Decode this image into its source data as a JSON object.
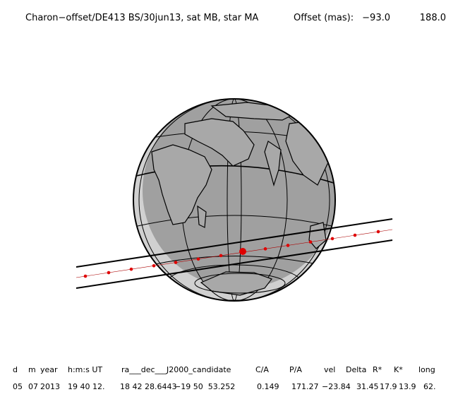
{
  "header": {
    "title": "Charon−offset/DE413 BS/30jun13, sat MB, star MA",
    "offset_label": "Offset (mas):",
    "offset_1": "−93.0",
    "offset_2": "188.0"
  },
  "table": {
    "columns": [
      "d",
      "m",
      "year",
      "h:m:s UT",
      "ra___dec___J2000_candidate",
      "C/A",
      "P/A",
      "vel",
      "Delta",
      "R*",
      "K*",
      "long"
    ],
    "row": [
      "05",
      "07",
      "2013",
      "19 40 12.",
      "18 42 28.6443",
      "−19 50  53.252",
      "0.149",
      "171.27",
      "−23.84",
      "31.45",
      "17.9",
      "13.9",
      "62."
    ]
  }
}
